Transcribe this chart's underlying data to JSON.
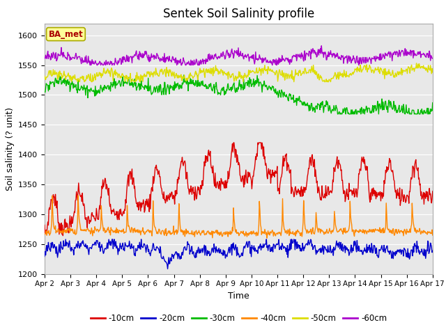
{
  "title": "Sentek Soil Salinity profile",
  "xlabel": "Time",
  "ylabel": "Soil salinity (? unit)",
  "ylim": [
    1200,
    1620
  ],
  "xlim": [
    0,
    15
  ],
  "xtick_labels": [
    "Apr 2",
    "Apr 3",
    "Apr 4",
    "Apr 5",
    "Apr 6",
    "Apr 7",
    "Apr 8",
    "Apr 9",
    "Apr 10",
    "Apr 11",
    "Apr 12",
    "Apr 13",
    "Apr 14",
    "Apr 15",
    "Apr 16",
    "Apr 17"
  ],
  "legend_labels": [
    "-10cm",
    "-20cm",
    "-30cm",
    "-40cm",
    "-50cm",
    "-60cm"
  ],
  "legend_colors": [
    "#dd0000",
    "#0000cc",
    "#00bb00",
    "#ff8800",
    "#dddd00",
    "#aa00cc"
  ],
  "bg_color": "#e8e8e8",
  "annotation_text": "BA_met",
  "annotation_color": "#aa0000",
  "annotation_bg": "#ffff99",
  "annotation_border": "#aaaa00",
  "yticks": [
    1200,
    1250,
    1300,
    1350,
    1400,
    1450,
    1500,
    1550,
    1600
  ]
}
